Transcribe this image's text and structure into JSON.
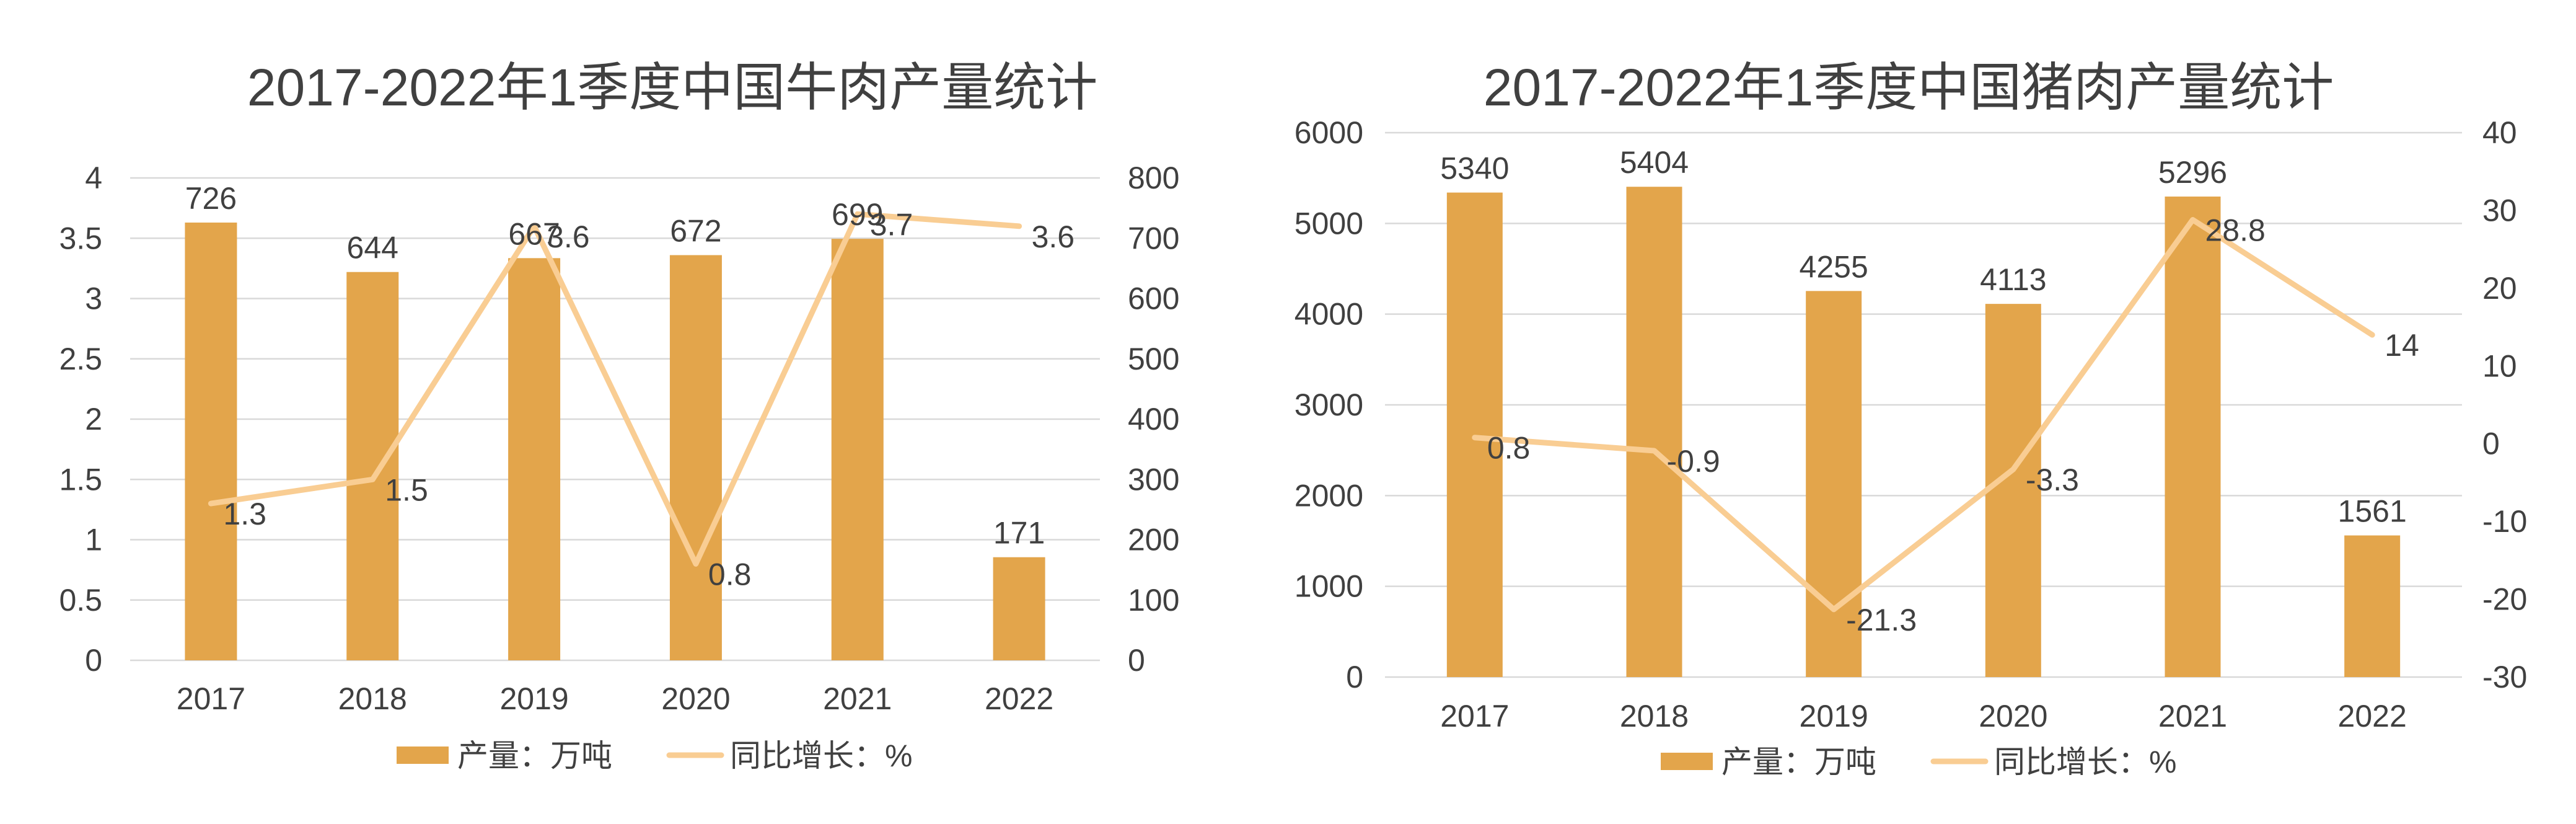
{
  "colors": {
    "bar": "#E3A54B",
    "line": "#F9CD93",
    "grid": "#D9D9D9",
    "text": "#404040",
    "title": "#595959"
  },
  "legend": {
    "bar_label": "产量：万吨",
    "line_label": "同比增长：%"
  },
  "chart_data": [
    {
      "type": "bar",
      "title": "2017-2022年1季度中国牛肉产量统计",
      "categories": [
        "2017",
        "2018",
        "2019",
        "2020",
        "2021",
        "2022"
      ],
      "series": [
        {
          "name": "产量：万吨",
          "type": "bar",
          "axis": "secondary",
          "values": [
            726,
            644,
            667,
            672,
            699,
            171
          ]
        },
        {
          "name": "同比增长：%",
          "type": "line",
          "axis": "primary",
          "values": [
            1.3,
            1.5,
            3.6,
            0.8,
            3.7,
            3.6
          ]
        }
      ],
      "y_left": {
        "ticks": [
          "0",
          "0.5",
          "1",
          "1.5",
          "2",
          "2.5",
          "3",
          "3.5",
          "4"
        ],
        "min": 0,
        "max": 4
      },
      "y_right": {
        "ticks": [
          "0",
          "100",
          "200",
          "300",
          "400",
          "500",
          "600",
          "700",
          "800"
        ],
        "min": 0,
        "max": 800
      },
      "grid": true,
      "legend_position": "bottom"
    },
    {
      "type": "bar",
      "title": "2017-2022年1季度中国猪肉产量统计",
      "categories": [
        "2017",
        "2018",
        "2019",
        "2020",
        "2021",
        "2022"
      ],
      "series": [
        {
          "name": "产量：万吨",
          "type": "bar",
          "axis": "primary",
          "values": [
            5340,
            5404,
            4255,
            4113,
            5296,
            1561
          ]
        },
        {
          "name": "同比增长：%",
          "type": "line",
          "axis": "secondary",
          "values": [
            0.8,
            -0.9,
            -21.3,
            -3.3,
            28.8,
            14
          ]
        }
      ],
      "y_left": {
        "ticks": [
          "0",
          "1000",
          "2000",
          "3000",
          "4000",
          "5000",
          "6000"
        ],
        "min": 0,
        "max": 6000
      },
      "y_right": {
        "ticks": [
          "-30",
          "-20",
          "-10",
          "0",
          "10",
          "20",
          "30",
          "40"
        ],
        "min": -30,
        "max": 40
      },
      "grid": true,
      "legend_position": "bottom"
    }
  ]
}
